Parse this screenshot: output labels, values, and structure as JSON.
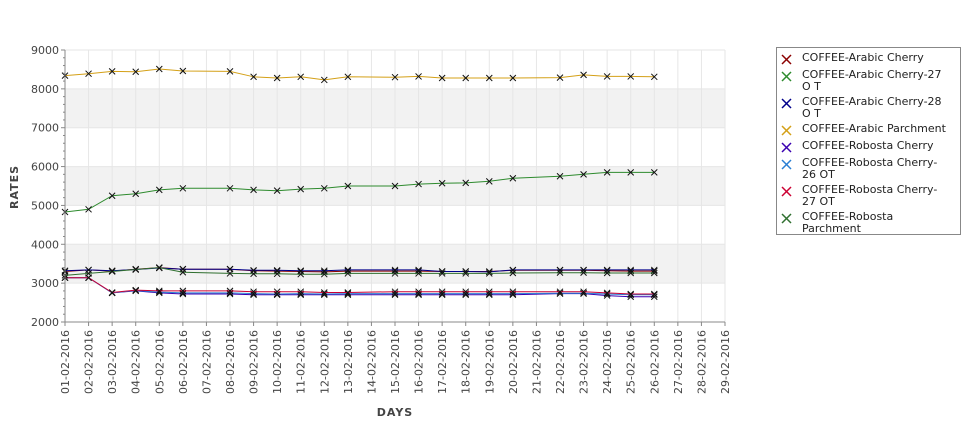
{
  "chart_data": {
    "type": "line",
    "xlabel": "DAYS",
    "ylabel": "RATES",
    "ylim": [
      2000,
      9000
    ],
    "yticks": [
      "2000",
      "3000",
      "4000",
      "5000",
      "6000",
      "7000",
      "8000",
      "9000"
    ],
    "grid": true,
    "legend_position": "right",
    "categories": [
      "01-02-2016",
      "02-02-2016",
      "03-02-2016",
      "04-02-2016",
      "05-02-2016",
      "06-02-2016",
      "07-02-2016",
      "08-02-2016",
      "09-02-2016",
      "10-02-2016",
      "11-02-2016",
      "12-02-2016",
      "13-02-2016",
      "14-02-2016",
      "15-02-2016",
      "16-02-2016",
      "17-02-2016",
      "18-02-2016",
      "19-02-2016",
      "20-02-2016",
      "21-02-2016",
      "22-02-2016",
      "23-02-2016",
      "24-02-2016",
      "25-02-2016",
      "26-02-2016",
      "27-02-2016",
      "28-02-2016",
      "29-02-2016"
    ],
    "series": [
      {
        "name": "COFFEE-Arabic Cherry",
        "color": "#8b0000",
        "values": [
          3300,
          3340,
          3310,
          3360,
          3400,
          3360,
          null,
          3360,
          3320,
          3310,
          3300,
          3290,
          3310,
          null,
          3310,
          3310,
          3300,
          3300,
          3300,
          3330,
          null,
          3330,
          3330,
          3320,
          3310,
          3310,
          null,
          null,
          null
        ]
      },
      {
        "name": "COFFEE-Arabic Cherry-27 O T",
        "color": "#2e8b2e",
        "values": [
          4830,
          4900,
          5250,
          5300,
          5400,
          5440,
          null,
          5440,
          5400,
          5380,
          5420,
          5440,
          5500,
          null,
          5500,
          5550,
          5570,
          5580,
          5620,
          5700,
          null,
          5750,
          5800,
          5850,
          5850,
          5850,
          null,
          null,
          null
        ]
      },
      {
        "name": "COFFEE-Arabic Cherry-28 O T",
        "color": "#00008b",
        "values": [
          3320,
          3340,
          3320,
          3350,
          3390,
          3360,
          null,
          3360,
          3330,
          3330,
          3320,
          3320,
          3340,
          null,
          3340,
          3340,
          3300,
          3300,
          3290,
          3340,
          null,
          3340,
          3340,
          3340,
          3340,
          3340,
          null,
          null,
          null
        ]
      },
      {
        "name": "COFFEE-Arabic Parchment",
        "color": "#d4a017",
        "values": [
          8340,
          8390,
          8450,
          8440,
          8510,
          8460,
          null,
          8450,
          8310,
          8280,
          8310,
          8230,
          8310,
          null,
          8300,
          8320,
          8280,
          8280,
          8280,
          8280,
          null,
          8290,
          8360,
          8320,
          8320,
          8310,
          null,
          null,
          null
        ]
      },
      {
        "name": "COFFEE-Robosta Cherry",
        "color": "#3a00b0",
        "values": [
          3140,
          3140,
          2750,
          2800,
          2750,
          2720,
          null,
          2720,
          2700,
          2700,
          2700,
          2700,
          2700,
          null,
          2700,
          2700,
          2700,
          2700,
          2700,
          2700,
          null,
          2730,
          2730,
          2680,
          2650,
          2650,
          null,
          null,
          null
        ]
      },
      {
        "name": "COFFEE-Robosta Cherry-26 OT",
        "color": "#2a7fd4",
        "values": [
          3140,
          3140,
          2750,
          2810,
          2770,
          2750,
          null,
          2750,
          2730,
          2720,
          2730,
          2720,
          2730,
          null,
          2730,
          2730,
          2730,
          2730,
          2730,
          2730,
          null,
          2740,
          2740,
          2720,
          2700,
          2700,
          null,
          null,
          null
        ]
      },
      {
        "name": "COFFEE-Robosta Cherry-27 OT",
        "color": "#cc0033",
        "values": [
          3140,
          3140,
          2760,
          2820,
          2800,
          2800,
          null,
          2800,
          2780,
          2780,
          2780,
          2760,
          2760,
          null,
          2780,
          2780,
          2780,
          2780,
          2780,
          2780,
          null,
          2780,
          2780,
          2750,
          2720,
          2720,
          null,
          null,
          null
        ]
      },
      {
        "name": "COFFEE-Robosta Parchment",
        "color": "#2f6f2f",
        "values": [
          3200,
          3250,
          3300,
          3350,
          3400,
          3280,
          null,
          3250,
          3240,
          3240,
          3230,
          3230,
          3250,
          null,
          3250,
          3250,
          3250,
          3250,
          3250,
          3260,
          null,
          3270,
          3270,
          3260,
          3260,
          3260,
          null,
          null,
          null
        ]
      }
    ]
  }
}
